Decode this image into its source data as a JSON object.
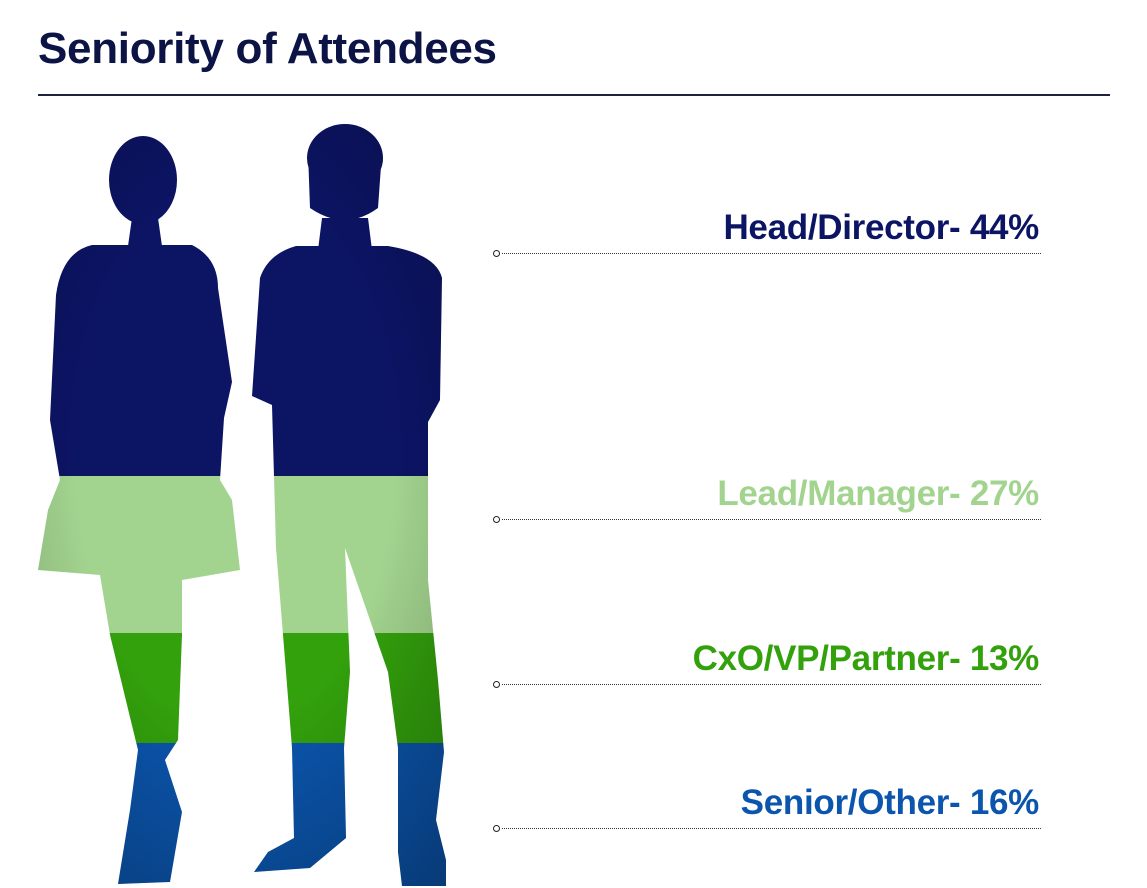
{
  "title": "Seniority of Attendees",
  "chart_data": {
    "type": "bar",
    "categories": [
      "Head/Director",
      "Lead/Manager",
      "CxO/VP/Partner",
      "Senior/Other"
    ],
    "values": [
      44,
      27,
      13,
      16
    ],
    "unit": "%",
    "labels": [
      "Head/Director- 44%",
      "Lead/Manager- 27%",
      "CxO/VP/Partner- 13%",
      "Senior/Other- 16%"
    ],
    "colors": [
      "#0c1464",
      "#a3d48f",
      "#33a10c",
      "#0b55ad"
    ]
  }
}
